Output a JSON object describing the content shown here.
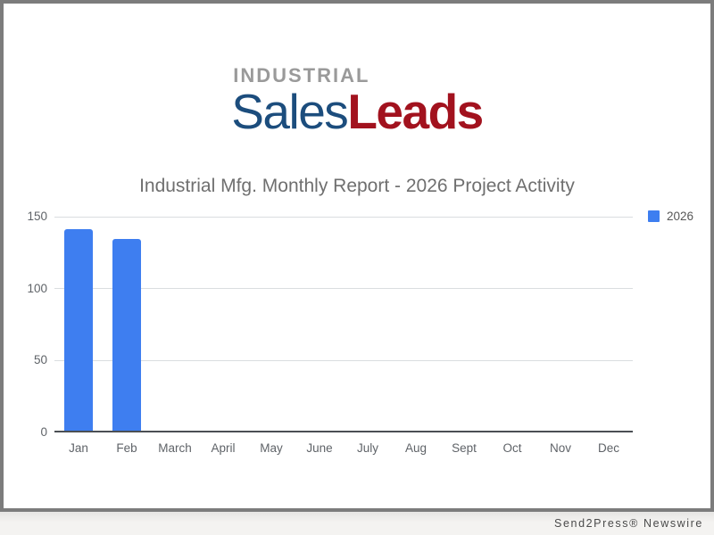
{
  "logo": {
    "top_text": "INDUSTRIAL",
    "sales_text": "Sales",
    "leads_text": "Leads",
    "colors": {
      "industrial": "#9a9a9a",
      "sales": "#1c4d7d",
      "leads": "#a2121e"
    }
  },
  "chart_data": {
    "type": "bar",
    "title": "Industrial Mfg. Monthly Report - 2026 Project Activity",
    "categories": [
      "Jan",
      "Feb",
      "March",
      "April",
      "May",
      "June",
      "July",
      "Aug",
      "Sept",
      "Oct",
      "Nov",
      "Dec"
    ],
    "series": [
      {
        "name": "2026",
        "color": "#3e7ef0",
        "values": [
          140,
          133,
          0,
          0,
          0,
          0,
          0,
          0,
          0,
          0,
          0,
          0
        ]
      }
    ],
    "xlabel": "",
    "ylabel": "",
    "ylim": [
      0,
      150
    ],
    "yticks": [
      0,
      50,
      100,
      150
    ],
    "grid": "horizontal",
    "legend_position": "right"
  },
  "footer": {
    "credit": "Send2Press® Newswire"
  }
}
